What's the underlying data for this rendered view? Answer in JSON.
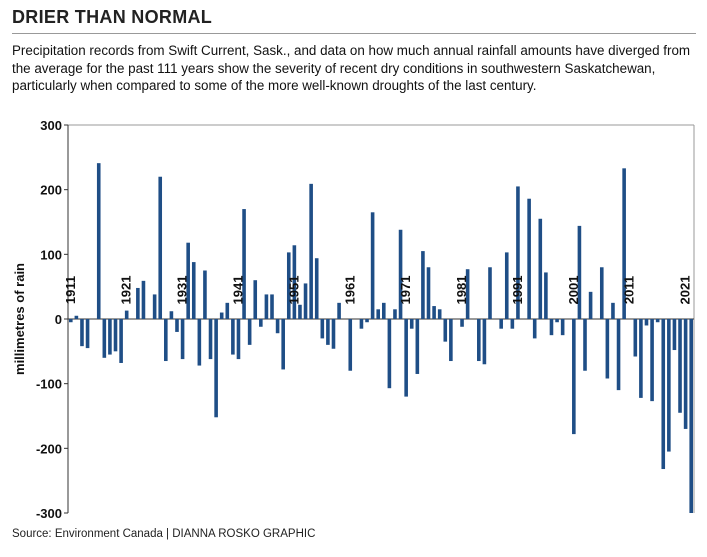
{
  "chart_data": {
    "type": "bar",
    "title": "DRIER THAN NORMAL",
    "subtitle": "Precipitation records from Swift Current, Sask., and data on how much annual rainfall amounts have diverged from the average for the past 111 years show the severity of recent dry conditions in southwestern Saskatchewan, particularly when compared to some of the more well-known droughts of the last century.",
    "y_label": "millimetres of rain",
    "source": "Source: Environment Canada  |  DIANNA ROSKO GRAPHIC",
    "color": "#1f4e86",
    "ylim": [
      -300,
      300
    ],
    "yticks": [
      -300,
      -200,
      -100,
      0,
      100,
      200,
      300
    ],
    "grid": false,
    "categories": [
      "1911",
      null,
      null,
      null,
      null,
      null,
      null,
      null,
      null,
      null,
      "1921",
      null,
      null,
      null,
      null,
      null,
      null,
      null,
      null,
      null,
      "1931",
      null,
      null,
      null,
      null,
      null,
      null,
      null,
      null,
      null,
      "1941",
      null,
      null,
      null,
      null,
      null,
      null,
      null,
      null,
      null,
      "1951",
      null,
      null,
      null,
      null,
      null,
      null,
      null,
      null,
      null,
      "1961",
      null,
      null,
      null,
      null,
      null,
      null,
      null,
      null,
      null,
      "1971",
      null,
      null,
      null,
      null,
      null,
      null,
      null,
      null,
      null,
      "1981",
      null,
      null,
      null,
      null,
      null,
      null,
      null,
      null,
      null,
      "1991",
      null,
      null,
      null,
      null,
      null,
      null,
      null,
      null,
      null,
      "2001",
      null,
      null,
      null,
      null,
      null,
      null,
      null,
      null,
      null,
      "2011",
      null,
      null,
      null,
      null,
      null,
      null,
      null,
      null,
      null,
      "2021",
      null
    ],
    "values": [
      -5,
      5,
      -42,
      -45,
      0,
      241,
      -60,
      -55,
      -50,
      -68,
      13,
      0,
      48,
      59,
      0,
      38,
      220,
      -65,
      12,
      -20,
      -62,
      118,
      88,
      -72,
      75,
      -62,
      -152,
      10,
      25,
      -55,
      -62,
      170,
      -40,
      60,
      -12,
      38,
      38,
      -22,
      -78,
      103,
      114,
      22,
      55,
      209,
      94,
      -30,
      -40,
      -46,
      25,
      0,
      -80,
      0,
      -15,
      -5,
      165,
      15,
      25,
      -107,
      15,
      138,
      -120,
      -15,
      -85,
      105,
      80,
      20,
      15,
      -35,
      -65,
      0,
      -12,
      77,
      0,
      -65,
      -70,
      80,
      0,
      -15,
      103,
      -15,
      205,
      0,
      186,
      -30,
      155,
      72,
      -25,
      -5,
      -25,
      0,
      -178,
      144,
      -80,
      42,
      0,
      80,
      -92,
      25,
      -110,
      233,
      0,
      -58,
      -122,
      -10,
      -127,
      -5,
      -232,
      -205,
      -48,
      -145,
      -170,
      -300
    ]
  }
}
